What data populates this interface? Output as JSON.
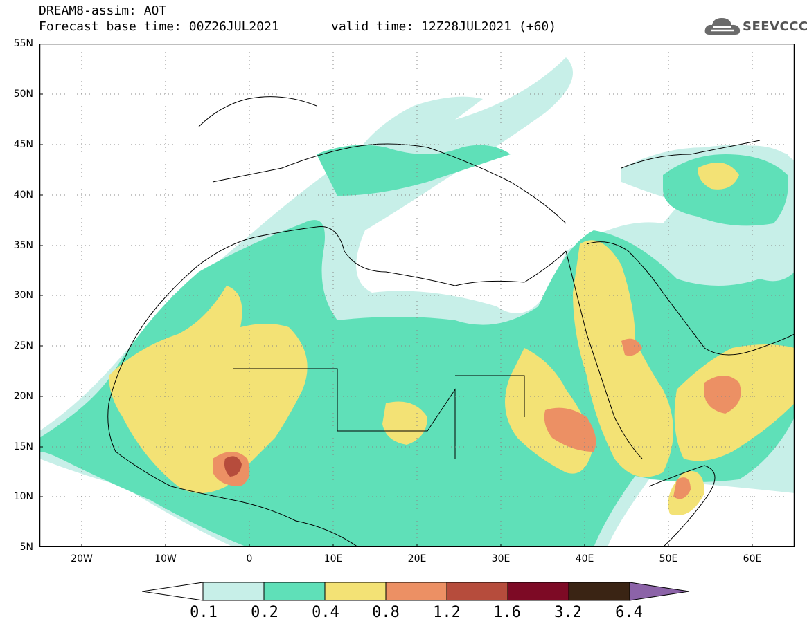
{
  "header": {
    "line1": "DREAM8-assim: AOT",
    "line2": "Forecast base time: 00Z26JUL2021",
    "valid": "valid time: 12Z28JUL2021 (+60)"
  },
  "logo": {
    "text": "SEEVCCC",
    "icon": "cloud-icon"
  },
  "axes": {
    "lat_labels": [
      "55N",
      "50N",
      "45N",
      "40N",
      "35N",
      "30N",
      "25N",
      "20N",
      "15N",
      "10N",
      "5N"
    ],
    "lon_labels": [
      "20W",
      "10W",
      "0",
      "10E",
      "20E",
      "30E",
      "40E",
      "50E",
      "60E"
    ]
  },
  "legend": {
    "colors": [
      "#ffffff",
      "#c7efe8",
      "#5fe0b8",
      "#f3e275",
      "#ec9064",
      "#b64c3c",
      "#7d0a25",
      "#3a2414",
      "#8c63a8"
    ],
    "labels": [
      "0.1",
      "0.2",
      "0.4",
      "0.8",
      "1.2",
      "1.6",
      "3.2",
      "6.4"
    ]
  }
}
